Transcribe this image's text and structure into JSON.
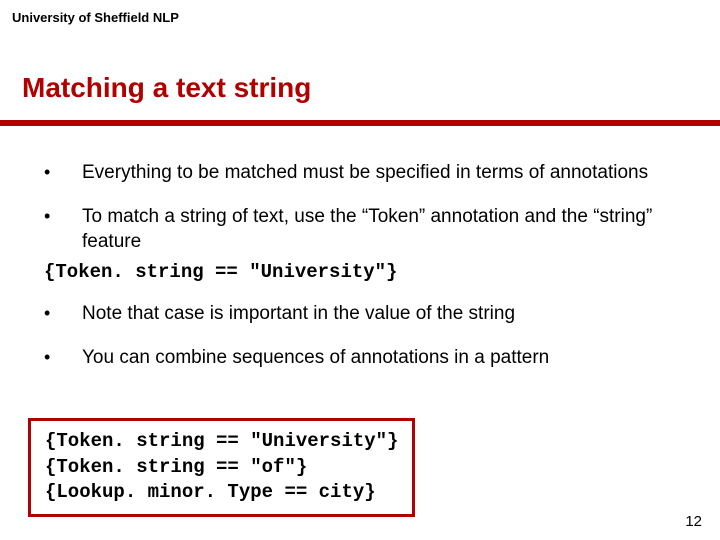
{
  "header": "University of Sheffield NLP",
  "title": "Matching a text string",
  "title_color": "#b00000",
  "divider_color": "#b00000",
  "bullets": [
    "Everything to be matched must be specified in terms of annotations",
    "To match a string of text, use the “Token” annotation and the “string” feature",
    "Note that case is important in the value of the string",
    "You can combine sequences of annotations in a pattern"
  ],
  "inline_code": "{Token. string == \"University\"}",
  "code_box": {
    "border_color": "#b00000",
    "lines": [
      "{Token. string == \"University\"}",
      "{Token. string == \"of\"}",
      "{Lookup. minor. Type == city}"
    ]
  },
  "page_number": "12"
}
